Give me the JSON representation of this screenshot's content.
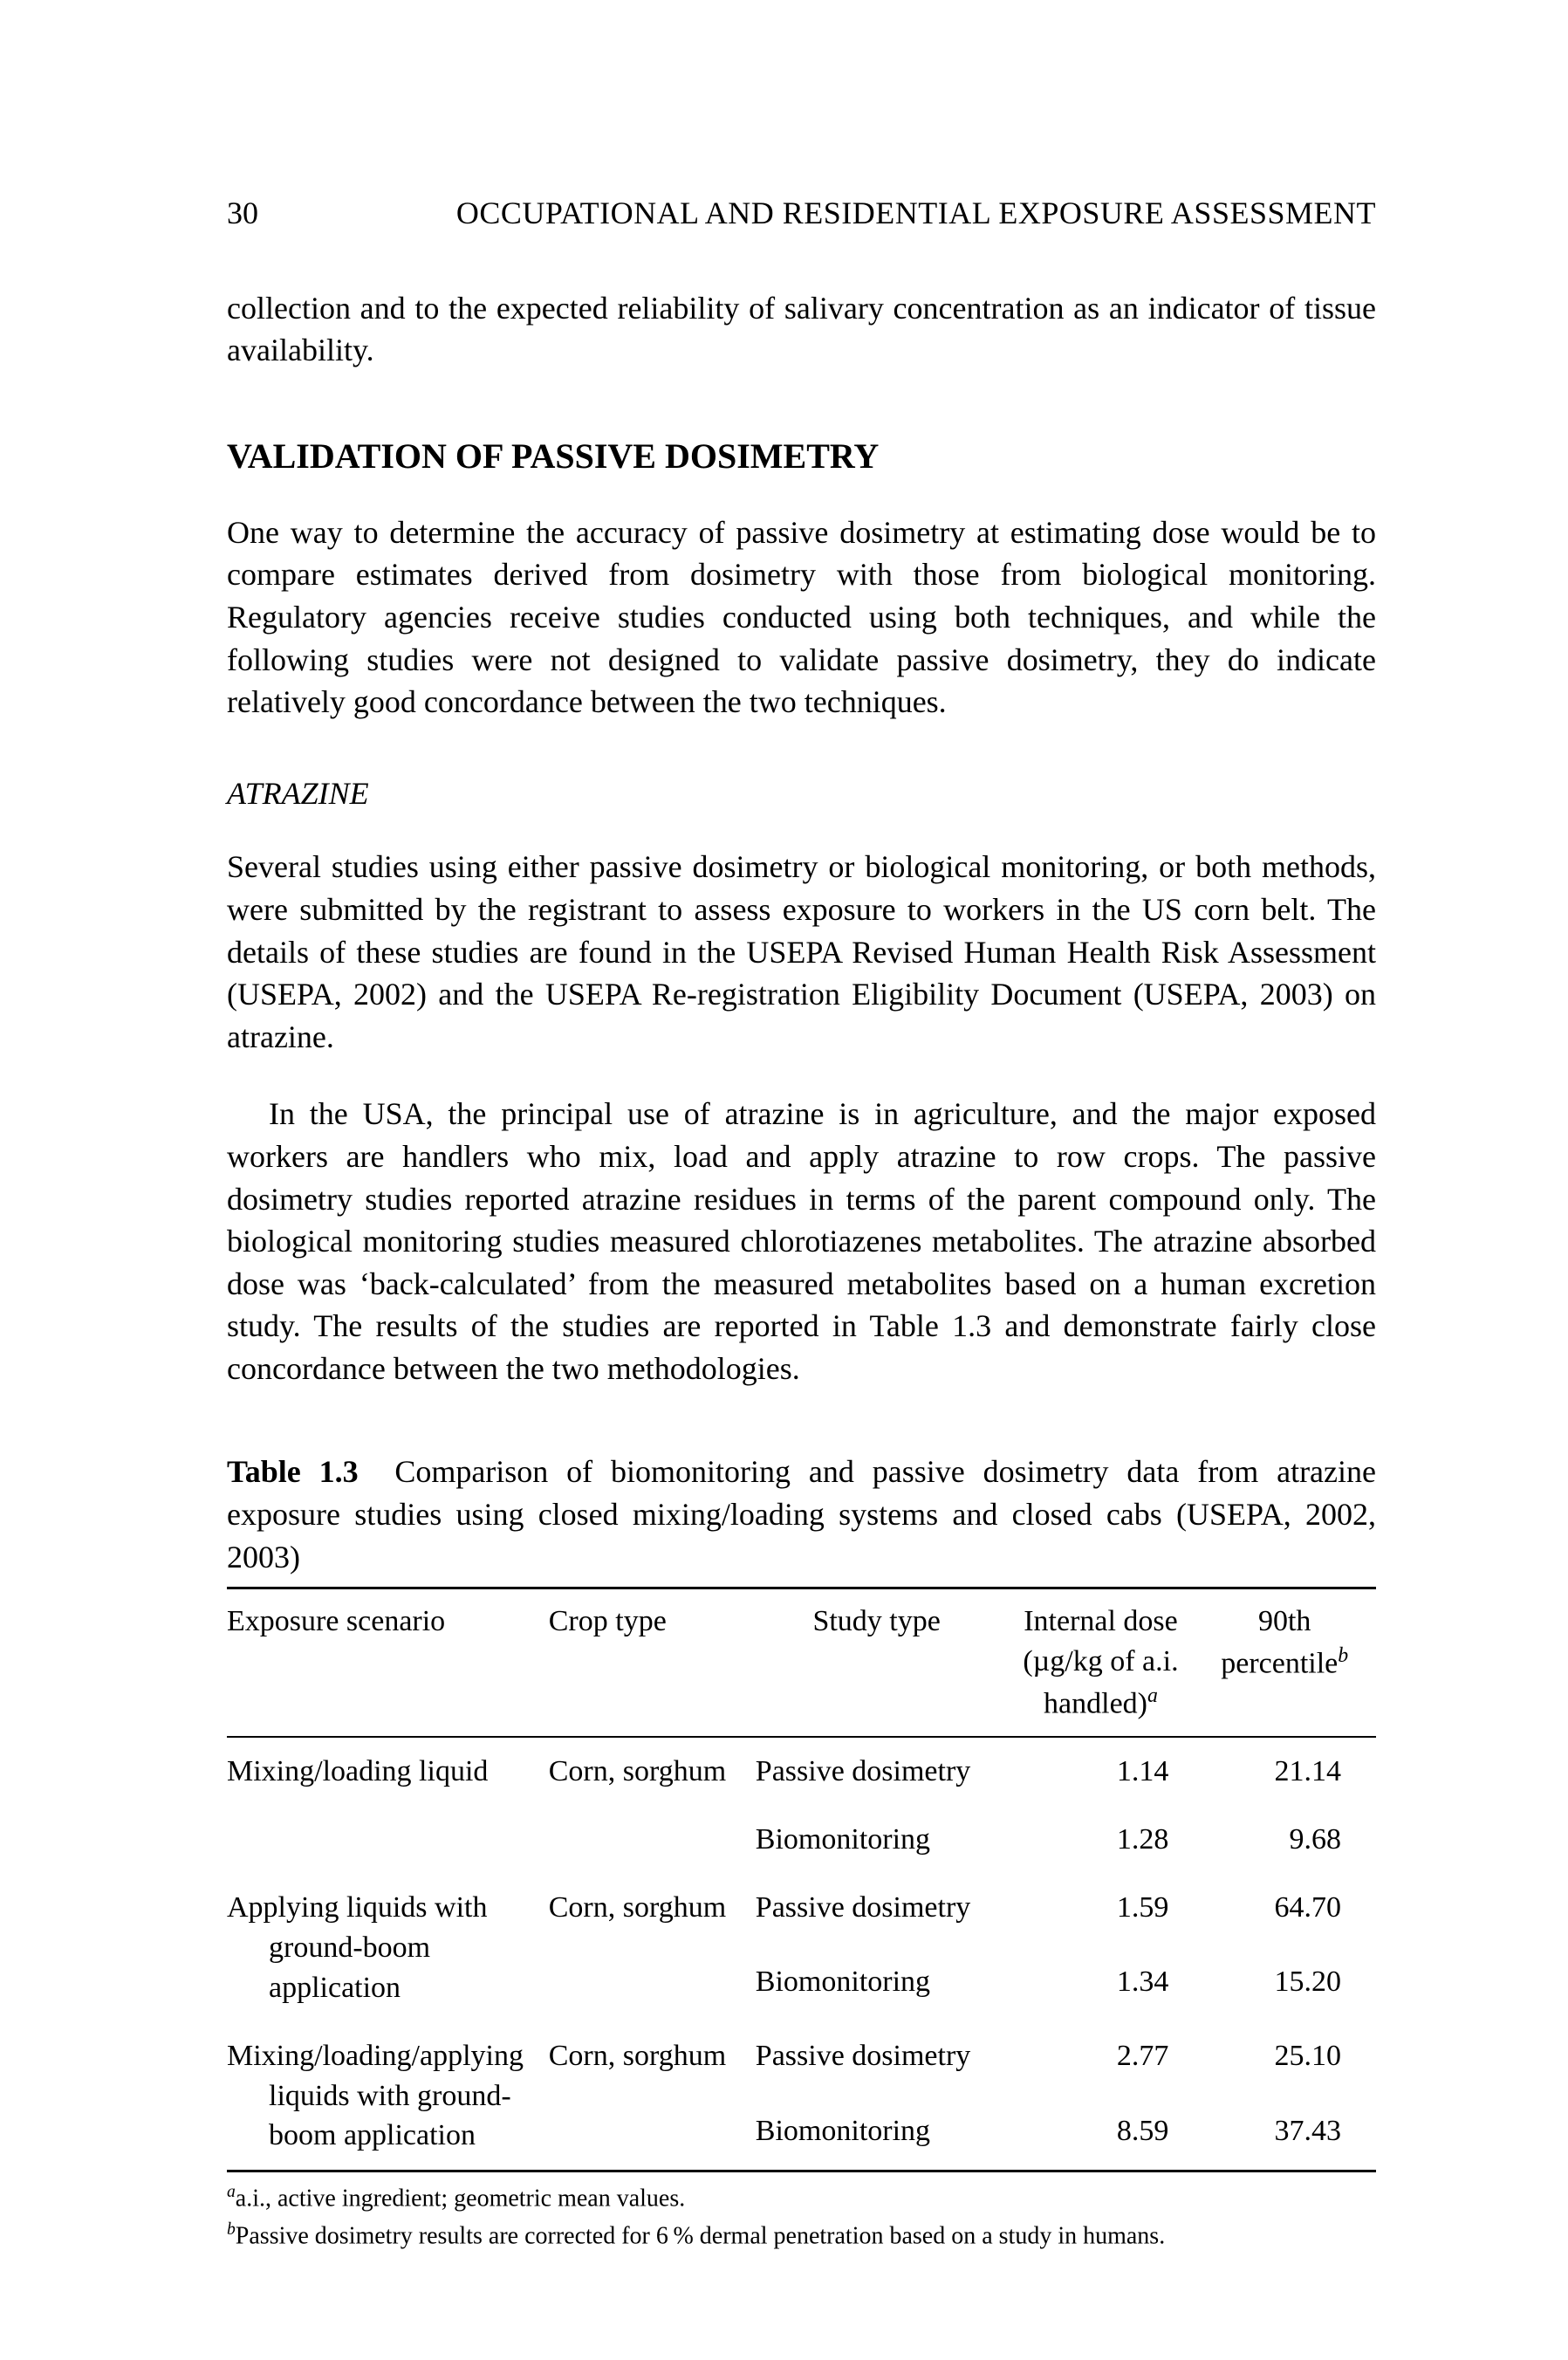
{
  "page_number": "30",
  "running_title": "OCCUPATIONAL AND RESIDENTIAL EXPOSURE ASSESSMENT",
  "para_top": "collection and to the expected reliability of salivary concentration as an indicator of tissue availability.",
  "section_heading": "VALIDATION OF PASSIVE DOSIMETRY",
  "section_para": "One way to determine the accuracy of passive dosimetry at estimating dose would be to compare estimates derived from dosimetry with those from biological monitoring. Regulatory agencies receive studies conducted using both techniques, and while the following studies were not designed to validate passive dosimetry, they do indicate relatively good concordance between the two techniques.",
  "subsection_heading": "ATRAZINE",
  "atrazine_para1": "Several studies using either passive dosimetry or biological monitoring, or both methods, were submitted by the registrant to assess exposure to workers in the US corn belt. The details of these studies are found in the USEPA Revised Human Health Risk Assessment (USEPA, 2002) and the USEPA Re-registration Eligibility Document (USEPA, 2003) on atrazine.",
  "atrazine_para2": "In the USA, the principal use of atrazine is in agriculture, and the major exposed workers are handlers who mix, load and apply atrazine to row crops. The passive dosimetry studies reported atrazine residues in terms of the parent compound only. The biological monitoring studies measured chlorotiazenes metabolites. The atrazine absorbed dose was ‘back-calculated’ from the measured metabolites based on a human excretion study. The results of the studies are reported in Table 1.3 and demonstrate fairly close concordance between the two methodologies.",
  "table": {
    "number": "Table 1.3",
    "caption_rest": "Comparison of biomonitoring and passive dosimetry data from atrazine exposure studies using closed mixing/loading systems and closed cabs (USEPA, 2002, 2003)",
    "columns": {
      "c1": "Exposure scenario",
      "c2": "Crop type",
      "c3": "Study type",
      "c4_line1": "Internal dose",
      "c4_line2": "(µg/kg of a.i.",
      "c4_line3": "handled)",
      "c4_sup": "a",
      "c5_line1": "90th",
      "c5_line2": "percentile",
      "c5_sup": "b"
    },
    "rows": [
      {
        "scenario": "Mixing/loading liquid",
        "crop": "Corn, sorghum",
        "study_a": "Passive dosimetry",
        "study_b": "Biomonitoring",
        "dose_a": "1.14",
        "dose_b": "1.28",
        "p90_a": "21.14",
        "p90_b": "9.68"
      },
      {
        "scenario": "Applying liquids with ground-boom application",
        "crop": "Corn, sorghum",
        "study_a": "Passive dosimetry",
        "study_b": "Biomonitoring",
        "dose_a": "1.59",
        "dose_b": "1.34",
        "p90_a": "64.70",
        "p90_b": "15.20"
      },
      {
        "scenario": "Mixing/loading/applying liquids with ground-boom application",
        "crop": "Corn, sorghum",
        "study_a": "Passive dosimetry",
        "study_b": "Biomonitoring",
        "dose_a": "2.77",
        "dose_b": "8.59",
        "p90_a": "25.10",
        "p90_b": "37.43"
      }
    ]
  },
  "footnotes": {
    "a_sup": "a",
    "a": "a.i., active ingredient; geometric mean values.",
    "b_sup": "b",
    "b": "Passive dosimetry results are corrected for 6 % dermal penetration based on a study in humans."
  }
}
